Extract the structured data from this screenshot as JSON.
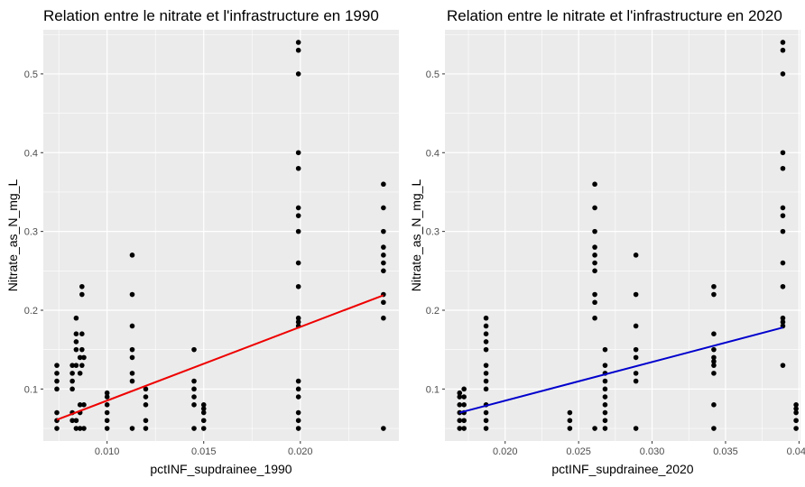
{
  "chart_data": [
    {
      "type": "scatter",
      "title": "Relation entre le nitrate et l'infrastructure en 1990",
      "xlabel": "pctINF_supdrainee_1990",
      "ylabel": "Nitrate_as_N_mg_L",
      "xlim": [
        0.0067,
        0.0251
      ],
      "ylim": [
        0.034,
        0.556
      ],
      "xticks": [
        0.01,
        0.015,
        0.02
      ],
      "xtick_labels": [
        "0.010",
        "0.015",
        "0.020"
      ],
      "yticks": [
        0.1,
        0.2,
        0.3,
        0.4,
        0.5
      ],
      "ytick_labels": [
        "0.1",
        "0.2",
        "0.3",
        "0.4",
        "0.5"
      ],
      "grid": true,
      "colors": {
        "panel": "#ebebeb",
        "grid": "#ffffff",
        "points": "#000000",
        "fit": "#ee0000"
      },
      "fit_line": {
        "x": [
          0.0074,
          0.0243
        ],
        "y": [
          0.061,
          0.219
        ]
      },
      "series": [
        {
          "points": [
            [
              0.0074,
              0.05
            ],
            [
              0.0074,
              0.06
            ],
            [
              0.0074,
              0.07
            ],
            [
              0.0074,
              0.1
            ],
            [
              0.0074,
              0.11
            ],
            [
              0.0074,
              0.12
            ],
            [
              0.0074,
              0.13
            ],
            [
              0.0082,
              0.06
            ],
            [
              0.0082,
              0.07
            ],
            [
              0.0082,
              0.1
            ],
            [
              0.0082,
              0.11
            ],
            [
              0.0082,
              0.12
            ],
            [
              0.0082,
              0.13
            ],
            [
              0.0084,
              0.05
            ],
            [
              0.0084,
              0.06
            ],
            [
              0.0084,
              0.13
            ],
            [
              0.0084,
              0.15
            ],
            [
              0.0084,
              0.16
            ],
            [
              0.0084,
              0.17
            ],
            [
              0.0084,
              0.19
            ],
            [
              0.0086,
              0.05
            ],
            [
              0.0086,
              0.07
            ],
            [
              0.0086,
              0.08
            ],
            [
              0.0086,
              0.12
            ],
            [
              0.0086,
              0.14
            ],
            [
              0.0087,
              0.13
            ],
            [
              0.0087,
              0.15
            ],
            [
              0.0087,
              0.17
            ],
            [
              0.0087,
              0.22
            ],
            [
              0.0087,
              0.23
            ],
            [
              0.0088,
              0.05
            ],
            [
              0.0088,
              0.08
            ],
            [
              0.0088,
              0.14
            ],
            [
              0.01,
              0.05
            ],
            [
              0.01,
              0.06
            ],
            [
              0.01,
              0.07
            ],
            [
              0.01,
              0.08
            ],
            [
              0.01,
              0.09
            ],
            [
              0.01,
              0.095
            ],
            [
              0.0113,
              0.05
            ],
            [
              0.0113,
              0.11
            ],
            [
              0.0113,
              0.12
            ],
            [
              0.0113,
              0.14
            ],
            [
              0.0113,
              0.15
            ],
            [
              0.0113,
              0.18
            ],
            [
              0.0113,
              0.22
            ],
            [
              0.0113,
              0.27
            ],
            [
              0.012,
              0.05
            ],
            [
              0.012,
              0.06
            ],
            [
              0.012,
              0.08
            ],
            [
              0.012,
              0.09
            ],
            [
              0.012,
              0.1
            ],
            [
              0.0145,
              0.05
            ],
            [
              0.0145,
              0.08
            ],
            [
              0.0145,
              0.09
            ],
            [
              0.0145,
              0.1
            ],
            [
              0.0145,
              0.11
            ],
            [
              0.0145,
              0.15
            ],
            [
              0.015,
              0.05
            ],
            [
              0.015,
              0.06
            ],
            [
              0.015,
              0.07
            ],
            [
              0.015,
              0.075
            ],
            [
              0.015,
              0.08
            ],
            [
              0.0199,
              0.05
            ],
            [
              0.0199,
              0.06
            ],
            [
              0.0199,
              0.07
            ],
            [
              0.0199,
              0.09
            ],
            [
              0.0199,
              0.1
            ],
            [
              0.0199,
              0.11
            ],
            [
              0.0199,
              0.18
            ],
            [
              0.0199,
              0.185
            ],
            [
              0.0199,
              0.19
            ],
            [
              0.0199,
              0.23
            ],
            [
              0.0199,
              0.26
            ],
            [
              0.0199,
              0.3
            ],
            [
              0.0199,
              0.32
            ],
            [
              0.0199,
              0.33
            ],
            [
              0.0199,
              0.38
            ],
            [
              0.0199,
              0.4
            ],
            [
              0.0199,
              0.5
            ],
            [
              0.0199,
              0.53
            ],
            [
              0.0199,
              0.54
            ],
            [
              0.0243,
              0.05
            ],
            [
              0.0243,
              0.19
            ],
            [
              0.0243,
              0.21
            ],
            [
              0.0243,
              0.22
            ],
            [
              0.0243,
              0.25
            ],
            [
              0.0243,
              0.26
            ],
            [
              0.0243,
              0.27
            ],
            [
              0.0243,
              0.28
            ],
            [
              0.0243,
              0.3
            ],
            [
              0.0243,
              0.33
            ],
            [
              0.0243,
              0.36
            ]
          ]
        }
      ]
    },
    {
      "type": "scatter",
      "title": "Relation entre le nitrate et l'infrastructure en 2020",
      "xlabel": "pctINF_supdrainee_2020",
      "ylabel": "Nitrate_as_N_mg_L",
      "xlim": [
        0.0159,
        0.0401
      ],
      "ylim": [
        0.034,
        0.556
      ],
      "xticks": [
        0.02,
        0.025,
        0.03,
        0.035,
        0.04
      ],
      "xtick_labels": [
        "0.020",
        "0.025",
        "0.030",
        "0.035",
        "0.040"
      ],
      "yticks": [
        0.1,
        0.2,
        0.3,
        0.4,
        0.5
      ],
      "ytick_labels": [
        "0.1",
        "0.2",
        "0.3",
        "0.4",
        "0.5"
      ],
      "grid": true,
      "colors": {
        "panel": "#ebebeb",
        "grid": "#ffffff",
        "points": "#000000",
        "fit": "#0000cd"
      },
      "fit_line": {
        "x": [
          0.0169,
          0.0389
        ],
        "y": [
          0.07,
          0.178
        ]
      },
      "series": [
        {
          "points": [
            [
              0.0169,
              0.05
            ],
            [
              0.0169,
              0.06
            ],
            [
              0.0169,
              0.07
            ],
            [
              0.0169,
              0.08
            ],
            [
              0.0169,
              0.09
            ],
            [
              0.0169,
              0.095
            ],
            [
              0.0172,
              0.05
            ],
            [
              0.0172,
              0.06
            ],
            [
              0.0172,
              0.07
            ],
            [
              0.0172,
              0.08
            ],
            [
              0.0172,
              0.09
            ],
            [
              0.0172,
              0.1
            ],
            [
              0.0187,
              0.05
            ],
            [
              0.0187,
              0.06
            ],
            [
              0.0187,
              0.07
            ],
            [
              0.0187,
              0.08
            ],
            [
              0.0187,
              0.1
            ],
            [
              0.0187,
              0.11
            ],
            [
              0.0187,
              0.12
            ],
            [
              0.0187,
              0.13
            ],
            [
              0.0187,
              0.15
            ],
            [
              0.0187,
              0.16
            ],
            [
              0.0187,
              0.17
            ],
            [
              0.0187,
              0.18
            ],
            [
              0.0187,
              0.19
            ],
            [
              0.0244,
              0.05
            ],
            [
              0.0244,
              0.06
            ],
            [
              0.0244,
              0.07
            ],
            [
              0.0261,
              0.05
            ],
            [
              0.0261,
              0.19
            ],
            [
              0.0261,
              0.21
            ],
            [
              0.0261,
              0.22
            ],
            [
              0.0261,
              0.25
            ],
            [
              0.0261,
              0.26
            ],
            [
              0.0261,
              0.27
            ],
            [
              0.0261,
              0.28
            ],
            [
              0.0261,
              0.3
            ],
            [
              0.0261,
              0.33
            ],
            [
              0.0261,
              0.36
            ],
            [
              0.0268,
              0.05
            ],
            [
              0.0268,
              0.06
            ],
            [
              0.0268,
              0.07
            ],
            [
              0.0268,
              0.08
            ],
            [
              0.0268,
              0.09
            ],
            [
              0.0268,
              0.1
            ],
            [
              0.0268,
              0.11
            ],
            [
              0.0268,
              0.12
            ],
            [
              0.0268,
              0.13
            ],
            [
              0.0268,
              0.15
            ],
            [
              0.0289,
              0.05
            ],
            [
              0.0289,
              0.11
            ],
            [
              0.0289,
              0.12
            ],
            [
              0.0289,
              0.14
            ],
            [
              0.0289,
              0.15
            ],
            [
              0.0289,
              0.18
            ],
            [
              0.0289,
              0.22
            ],
            [
              0.0289,
              0.27
            ],
            [
              0.0342,
              0.05
            ],
            [
              0.0342,
              0.08
            ],
            [
              0.0342,
              0.12
            ],
            [
              0.0342,
              0.13
            ],
            [
              0.0342,
              0.135
            ],
            [
              0.0342,
              0.14
            ],
            [
              0.0342,
              0.15
            ],
            [
              0.0342,
              0.17
            ],
            [
              0.0342,
              0.22
            ],
            [
              0.0342,
              0.23
            ],
            [
              0.0389,
              0.13
            ],
            [
              0.0389,
              0.18
            ],
            [
              0.0389,
              0.185
            ],
            [
              0.0389,
              0.19
            ],
            [
              0.0389,
              0.23
            ],
            [
              0.0389,
              0.26
            ],
            [
              0.0389,
              0.3
            ],
            [
              0.0389,
              0.32
            ],
            [
              0.0389,
              0.33
            ],
            [
              0.0389,
              0.38
            ],
            [
              0.0389,
              0.4
            ],
            [
              0.0389,
              0.5
            ],
            [
              0.0389,
              0.53
            ],
            [
              0.0389,
              0.54
            ],
            [
              0.0398,
              0.05
            ],
            [
              0.0398,
              0.06
            ],
            [
              0.0398,
              0.07
            ],
            [
              0.0398,
              0.075
            ],
            [
              0.0398,
              0.08
            ]
          ]
        }
      ]
    }
  ]
}
